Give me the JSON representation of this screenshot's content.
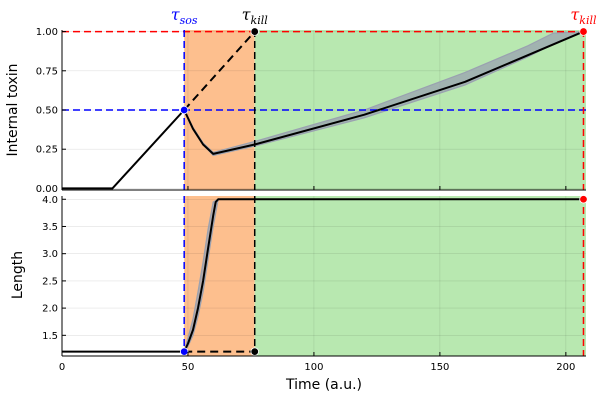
{
  "chart_data": [
    {
      "type": "line",
      "panel": "top",
      "ylabel": "Internal toxin",
      "xlim": [
        0,
        208
      ],
      "ylim": [
        -0.01,
        1.01
      ],
      "yticks": [
        0.0,
        0.25,
        0.5,
        0.75,
        1.0
      ],
      "yticklabels": [
        "0.00",
        "0.25",
        "0.50",
        "0.75",
        "1.00"
      ],
      "grid": true,
      "legend": "none",
      "regions": [
        {
          "name": "orange",
          "from": 48.5,
          "to": 76.5,
          "color": "#fdbf8e"
        },
        {
          "name": "green",
          "from": 76.5,
          "to": 208,
          "color": "#b8e8b0"
        }
      ],
      "series": [
        {
          "style": "solid",
          "color": "#000000",
          "x": [
            0,
            20,
            48.5,
            52,
            56,
            60,
            76.5,
            120,
            160,
            207
          ],
          "y": [
            0,
            0,
            0.5,
            0.38,
            0.28,
            0.22,
            0.28,
            0.47,
            0.68,
            1.0
          ]
        },
        {
          "style": "dashed",
          "color": "#000000",
          "x": [
            48.5,
            76.5
          ],
          "y": [
            0.5,
            1.0
          ]
        }
      ],
      "spread": {
        "color": "#9aa1b0",
        "x": [
          48.5,
          52,
          56,
          60,
          76.5,
          120,
          160,
          185,
          195,
          207
        ],
        "lower": [
          0.5,
          0.38,
          0.28,
          0.21,
          0.27,
          0.45,
          0.66,
          0.84,
          0.92,
          1.0
        ],
        "upper": [
          0.5,
          0.39,
          0.29,
          0.23,
          0.3,
          0.5,
          0.74,
          0.91,
          0.99,
          1.0
        ]
      },
      "reference_lines": [
        {
          "orientation": "horizontal",
          "y": 1.0,
          "color": "#ff0000",
          "style": "dashed"
        },
        {
          "orientation": "horizontal",
          "y": 0.5,
          "color": "#0000ff",
          "style": "dashed"
        },
        {
          "orientation": "vertical",
          "x": 48.5,
          "color": "#0000ff",
          "style": "dashed"
        },
        {
          "orientation": "vertical",
          "x": 76.5,
          "color": "#000000",
          "style": "dashed"
        },
        {
          "orientation": "vertical",
          "x": 207,
          "color": "#ff0000",
          "style": "dashed"
        }
      ],
      "markers": [
        {
          "x": 48.5,
          "y": 0.5,
          "color": "#0000ff"
        },
        {
          "x": 76.5,
          "y": 1.0,
          "color": "#000000"
        },
        {
          "x": 207,
          "y": 1.0,
          "color": "#ff0000"
        }
      ]
    },
    {
      "type": "line",
      "panel": "bottom",
      "xlabel": "Time (a.u.)",
      "ylabel": "Length",
      "xlim": [
        0,
        208
      ],
      "ylim": [
        1.12,
        4.06
      ],
      "xticks": [
        0,
        50,
        100,
        150,
        200
      ],
      "xticklabels": [
        "0",
        "50",
        "100",
        "150",
        "200"
      ],
      "yticks": [
        1.5,
        2.0,
        2.5,
        3.0,
        3.5,
        4.0
      ],
      "yticklabels": [
        "1.5",
        "2.0",
        "2.5",
        "3.0",
        "3.5",
        "4.0"
      ],
      "grid": true,
      "legend": "none",
      "regions": [
        {
          "name": "orange",
          "from": 48.5,
          "to": 76.5,
          "color": "#fdbf8e"
        },
        {
          "name": "green",
          "from": 76.5,
          "to": 208,
          "color": "#b8e8b0"
        }
      ],
      "series": [
        {
          "style": "solid",
          "color": "#000000",
          "x": [
            0,
            48.5,
            50,
            52,
            54,
            56,
            58,
            60,
            61,
            62,
            208
          ],
          "y": [
            1.2,
            1.2,
            1.35,
            1.6,
            2.0,
            2.5,
            3.1,
            3.7,
            3.95,
            4.0,
            4.0
          ]
        },
        {
          "style": "dashed",
          "color": "#000000",
          "x": [
            48.5,
            76.5
          ],
          "y": [
            1.2,
            1.2
          ]
        }
      ],
      "spread": {
        "color": "#9aa1b0",
        "x": [
          48.5,
          50,
          52,
          54,
          56,
          58,
          60,
          62
        ],
        "lower": [
          1.2,
          1.3,
          1.5,
          1.85,
          2.3,
          2.9,
          3.5,
          4.0
        ],
        "upper": [
          1.2,
          1.45,
          1.8,
          2.3,
          2.85,
          3.45,
          3.95,
          4.0
        ]
      },
      "reference_lines": [
        {
          "orientation": "vertical",
          "x": 48.5,
          "color": "#0000ff",
          "style": "dashed"
        },
        {
          "orientation": "vertical",
          "x": 76.5,
          "color": "#000000",
          "style": "dashed"
        },
        {
          "orientation": "vertical",
          "x": 207,
          "color": "#ff0000",
          "style": "dashed"
        }
      ],
      "markers": [
        {
          "x": 48.5,
          "y": 1.2,
          "color": "#0000ff"
        },
        {
          "x": 76.5,
          "y": 1.2,
          "color": "#000000"
        },
        {
          "x": 207,
          "y": 4.0,
          "color": "#ff0000"
        }
      ]
    }
  ],
  "annotations": [
    {
      "main": "τ",
      "sub": "sos",
      "x": 48.5,
      "color": "#0000ff"
    },
    {
      "main": "τ",
      "sub": "kill",
      "x": 76.5,
      "color": "#000000"
    },
    {
      "main": "τ",
      "sub": "kill",
      "x": 207,
      "color": "#ff0000"
    }
  ]
}
